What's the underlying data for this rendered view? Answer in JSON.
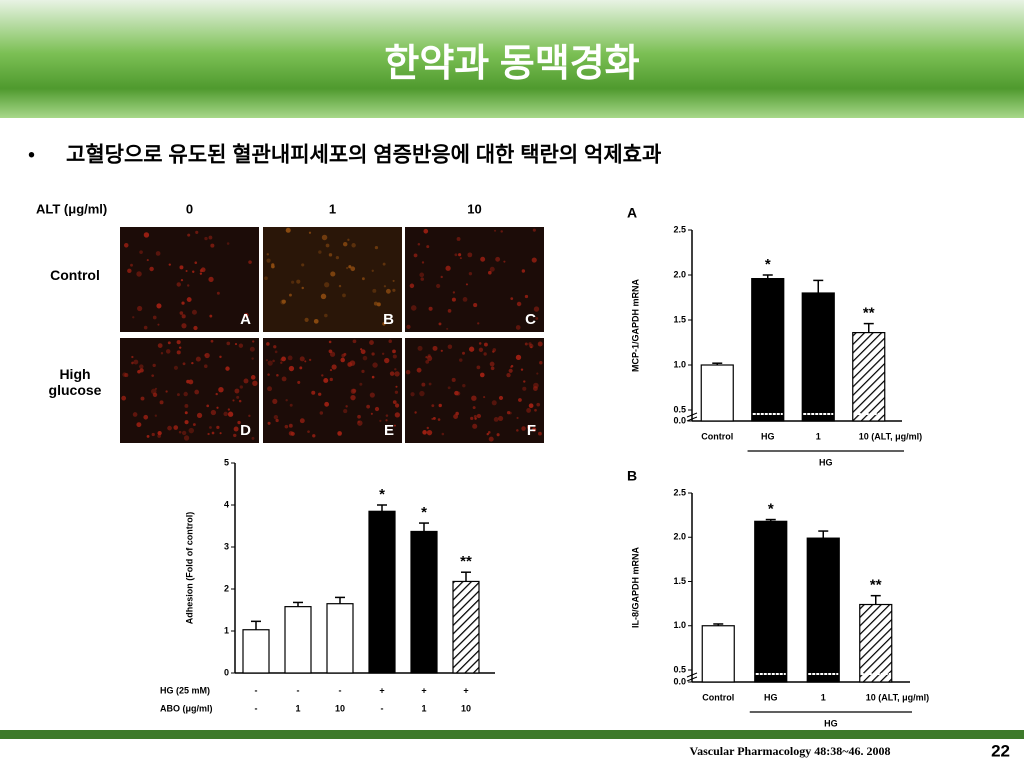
{
  "slide": {
    "title": "한약과 동맥경화",
    "bullet": "고혈당으로 유도된 혈관내피세포의 염증반응에 대한 택란의 억제효과"
  },
  "micrograph": {
    "header": "ALT (μg/ml)",
    "columns": [
      "0",
      "1",
      "10"
    ],
    "rows": [
      "Control",
      "High glucose"
    ],
    "panels": [
      "A",
      "B",
      "C",
      "D",
      "E",
      "F"
    ]
  },
  "chart_data": [
    {
      "type": "bar",
      "ylabel": "Adhesion (Fold of control)",
      "category_rows": [
        {
          "label": "HG (25 mM)",
          "values": [
            "-",
            "-",
            "-",
            "+",
            "+",
            "+"
          ]
        },
        {
          "label": "ABO (μg/ml)",
          "values": [
            "-",
            "1",
            "10",
            "-",
            "1",
            "10"
          ]
        }
      ],
      "values": [
        1.03,
        1.58,
        1.65,
        3.85,
        3.37,
        2.18
      ],
      "errors": [
        0.2,
        0.1,
        0.15,
        0.15,
        0.2,
        0.22
      ],
      "bar_styles": [
        "open",
        "open",
        "open",
        "solid",
        "solid",
        "hatched"
      ],
      "value_annotations": [
        null,
        null,
        null,
        "*",
        "*",
        "**"
      ],
      "ylim": [
        0,
        5
      ],
      "yticks": [
        0,
        1,
        2,
        3,
        4,
        5
      ]
    },
    {
      "type": "bar",
      "panel_label": "A",
      "ylabel": "MCP-1/GAPDH mRNA",
      "categories": [
        "Control",
        "HG",
        "1",
        "10 (ALT, μg/ml)"
      ],
      "group_label": "HG",
      "values": [
        1.0,
        1.96,
        1.8,
        1.36
      ],
      "errors": [
        0.02,
        0.04,
        0.14,
        0.1
      ],
      "bar_styles": [
        "open",
        "solid",
        "solid",
        "hatched"
      ],
      "value_annotations": [
        null,
        "*",
        null,
        "**"
      ],
      "ylim": [
        0,
        2.5
      ],
      "axis_break": 0.5,
      "yticks": [
        {
          "value": 0,
          "label": "0.0"
        },
        {
          "value": 0.5,
          "label": "0.5"
        },
        {
          "value": 1,
          "label": "1.0"
        },
        {
          "value": 1.5,
          "label": "1.5"
        },
        {
          "value": 2,
          "label": "2.0"
        },
        {
          "value": 2.5,
          "label": "2.5"
        }
      ]
    },
    {
      "type": "bar",
      "panel_label": "B",
      "ylabel": "IL-8/GAPDH mRNA",
      "categories": [
        "Control",
        "HG",
        "1",
        "10 (ALT, μg/ml)"
      ],
      "group_label": "HG",
      "values": [
        1.0,
        2.18,
        1.99,
        1.24
      ],
      "errors": [
        0.02,
        0.02,
        0.08,
        0.1
      ],
      "bar_styles": [
        "open",
        "solid",
        "solid",
        "hatched"
      ],
      "value_annotations": [
        null,
        "*",
        null,
        "**"
      ],
      "ylim": [
        0,
        2.5
      ],
      "axis_break": 0.5,
      "yticks": [
        {
          "value": 0,
          "label": "0.0"
        },
        {
          "value": 0.5,
          "label": "0.5"
        },
        {
          "value": 1,
          "label": "1.0"
        },
        {
          "value": 1.5,
          "label": "1.5"
        },
        {
          "value": 2,
          "label": "2.0"
        },
        {
          "value": 2.5,
          "label": "2.5"
        }
      ]
    }
  ],
  "footer": {
    "citation": "Vascular Pharmacology 48:38~46. 2008",
    "page": "22"
  }
}
